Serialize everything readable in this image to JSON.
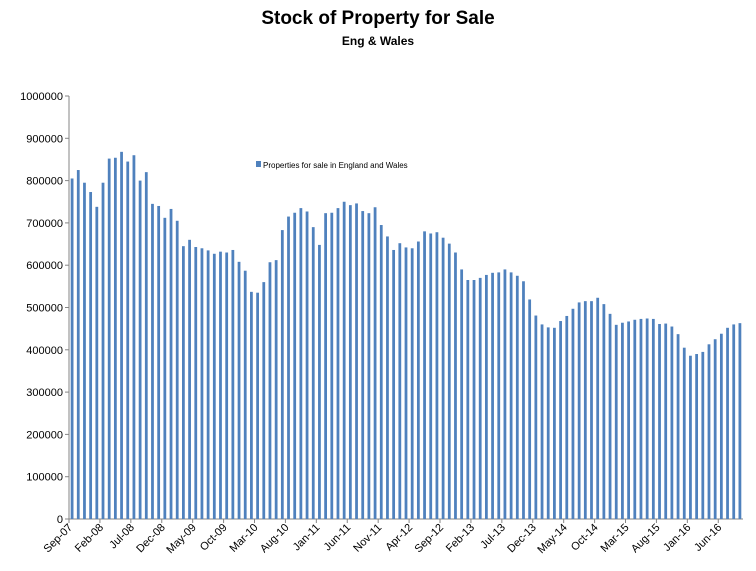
{
  "chart_data": {
    "type": "bar",
    "title": "Stock of Property for Sale",
    "subtitle": "Eng & Wales",
    "xlabel": "",
    "ylabel": "",
    "ylim": [
      0,
      1000000
    ],
    "yticks": [
      0,
      100000,
      200000,
      300000,
      400000,
      500000,
      600000,
      700000,
      800000,
      900000,
      1000000
    ],
    "ytick_labels": [
      "0",
      "100000",
      "200000",
      "300000",
      "400000",
      "500000",
      "600000",
      "700000",
      "800000",
      "900000",
      "1000000"
    ],
    "legend": {
      "position": "inside-top-center",
      "label": "Properties for sale in England and Wales"
    },
    "grid": false,
    "bar_color": "#4F81BD",
    "series": [
      {
        "name": "Properties for sale in England and Wales",
        "values": [
          805000,
          825000,
          795000,
          773000,
          738000,
          795000,
          852000,
          854000,
          868000,
          845000,
          860000,
          800000,
          820000,
          745000,
          740000,
          712000,
          733000,
          705000,
          645000,
          660000,
          643000,
          640000,
          635000,
          627000,
          632000,
          630000,
          636000,
          608000,
          587000,
          537000,
          535000,
          560000,
          607000,
          612000,
          683000,
          715000,
          724000,
          735000,
          727000,
          690000,
          648000,
          723000,
          724000,
          735000,
          750000,
          742000,
          746000,
          728000,
          723000,
          737000,
          695000,
          668000,
          636000,
          652000,
          642000,
          640000,
          656000,
          680000,
          675000,
          678000,
          665000,
          651000,
          630000,
          590000,
          565000,
          565000,
          570000,
          577000,
          582000,
          583000,
          590000,
          583000,
          575000,
          562000,
          519000,
          481000,
          460000,
          453000,
          452000,
          468000,
          480000,
          497000,
          512000,
          515000,
          515000,
          523000,
          508000,
          485000,
          459000,
          464000,
          467000,
          471000,
          473000,
          474000,
          473000,
          461000,
          462000,
          455000,
          437000,
          405000,
          386000,
          390000,
          395000,
          413000,
          425000,
          438000,
          452000,
          460000,
          463000
        ]
      }
    ],
    "x_start": "Sep-07",
    "x_step_months": 1,
    "x_tick_every": 5,
    "x_tick_labels": [
      "Sep-07",
      "Feb-08",
      "Jul-08",
      "Dec-08",
      "May-09",
      "Oct-09",
      "Mar-10",
      "Aug-10",
      "Jan-11",
      "Jun-11",
      "Nov-11",
      "Apr-12",
      "Sep-12",
      "Feb-13",
      "Jul-13",
      "Dec-13",
      "May-14",
      "Oct-14",
      "Mar-15",
      "Aug-15",
      "Jan-16",
      "Jun-16"
    ]
  }
}
